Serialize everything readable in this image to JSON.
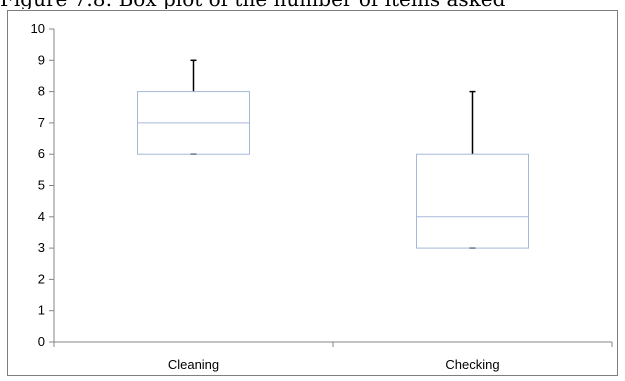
{
  "caption": "Figure 7.8: Box plot of the number of items asked",
  "chart_data": {
    "type": "box",
    "title": "",
    "xlabel": "",
    "ylabel": "",
    "ylim": [
      0,
      10
    ],
    "yticks": [
      0,
      1,
      2,
      3,
      4,
      5,
      6,
      7,
      8,
      9,
      10
    ],
    "grid": false,
    "categories": [
      "Cleaning",
      "Checking"
    ],
    "boxes": [
      {
        "category": "Cleaning",
        "min": 6,
        "q1": 6,
        "median": 7,
        "q3": 8,
        "max": 9
      },
      {
        "category": "Checking",
        "min": 3,
        "q1": 3,
        "median": 4,
        "q3": 6,
        "max": 8
      }
    ],
    "colors": {
      "box": "#a6b8d9",
      "whisker": "#000000",
      "axis": "#868686"
    }
  }
}
